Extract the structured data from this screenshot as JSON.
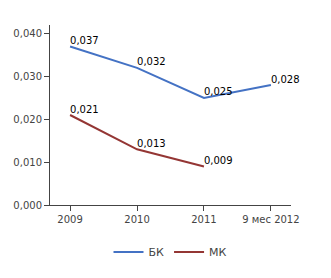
{
  "chart_data": {
    "type": "line",
    "categories": [
      "2009",
      "2010",
      "2011",
      "9 мес 2012"
    ],
    "series": [
      {
        "name": "БК",
        "color": "#4472C4",
        "values": [
          0.037,
          0.032,
          0.025,
          0.028
        ],
        "value_labels": [
          "0,037",
          "0,032",
          "0,025",
          "0,028"
        ]
      },
      {
        "name": "МК",
        "color": "#943634",
        "values": [
          0.021,
          0.013,
          0.009,
          null
        ],
        "value_labels": [
          "0,021",
          "0,013",
          "0,009",
          null
        ]
      }
    ],
    "ylim": [
      0.0,
      0.042
    ],
    "yticks": [
      {
        "value": 0.0,
        "label": "0,000"
      },
      {
        "value": 0.01,
        "label": "0,010"
      },
      {
        "value": 0.02,
        "label": "0,020"
      },
      {
        "value": 0.03,
        "label": "0,030"
      },
      {
        "value": 0.04,
        "label": "0,040"
      }
    ],
    "grid": false,
    "legend": "bottom",
    "data_labels": true
  }
}
